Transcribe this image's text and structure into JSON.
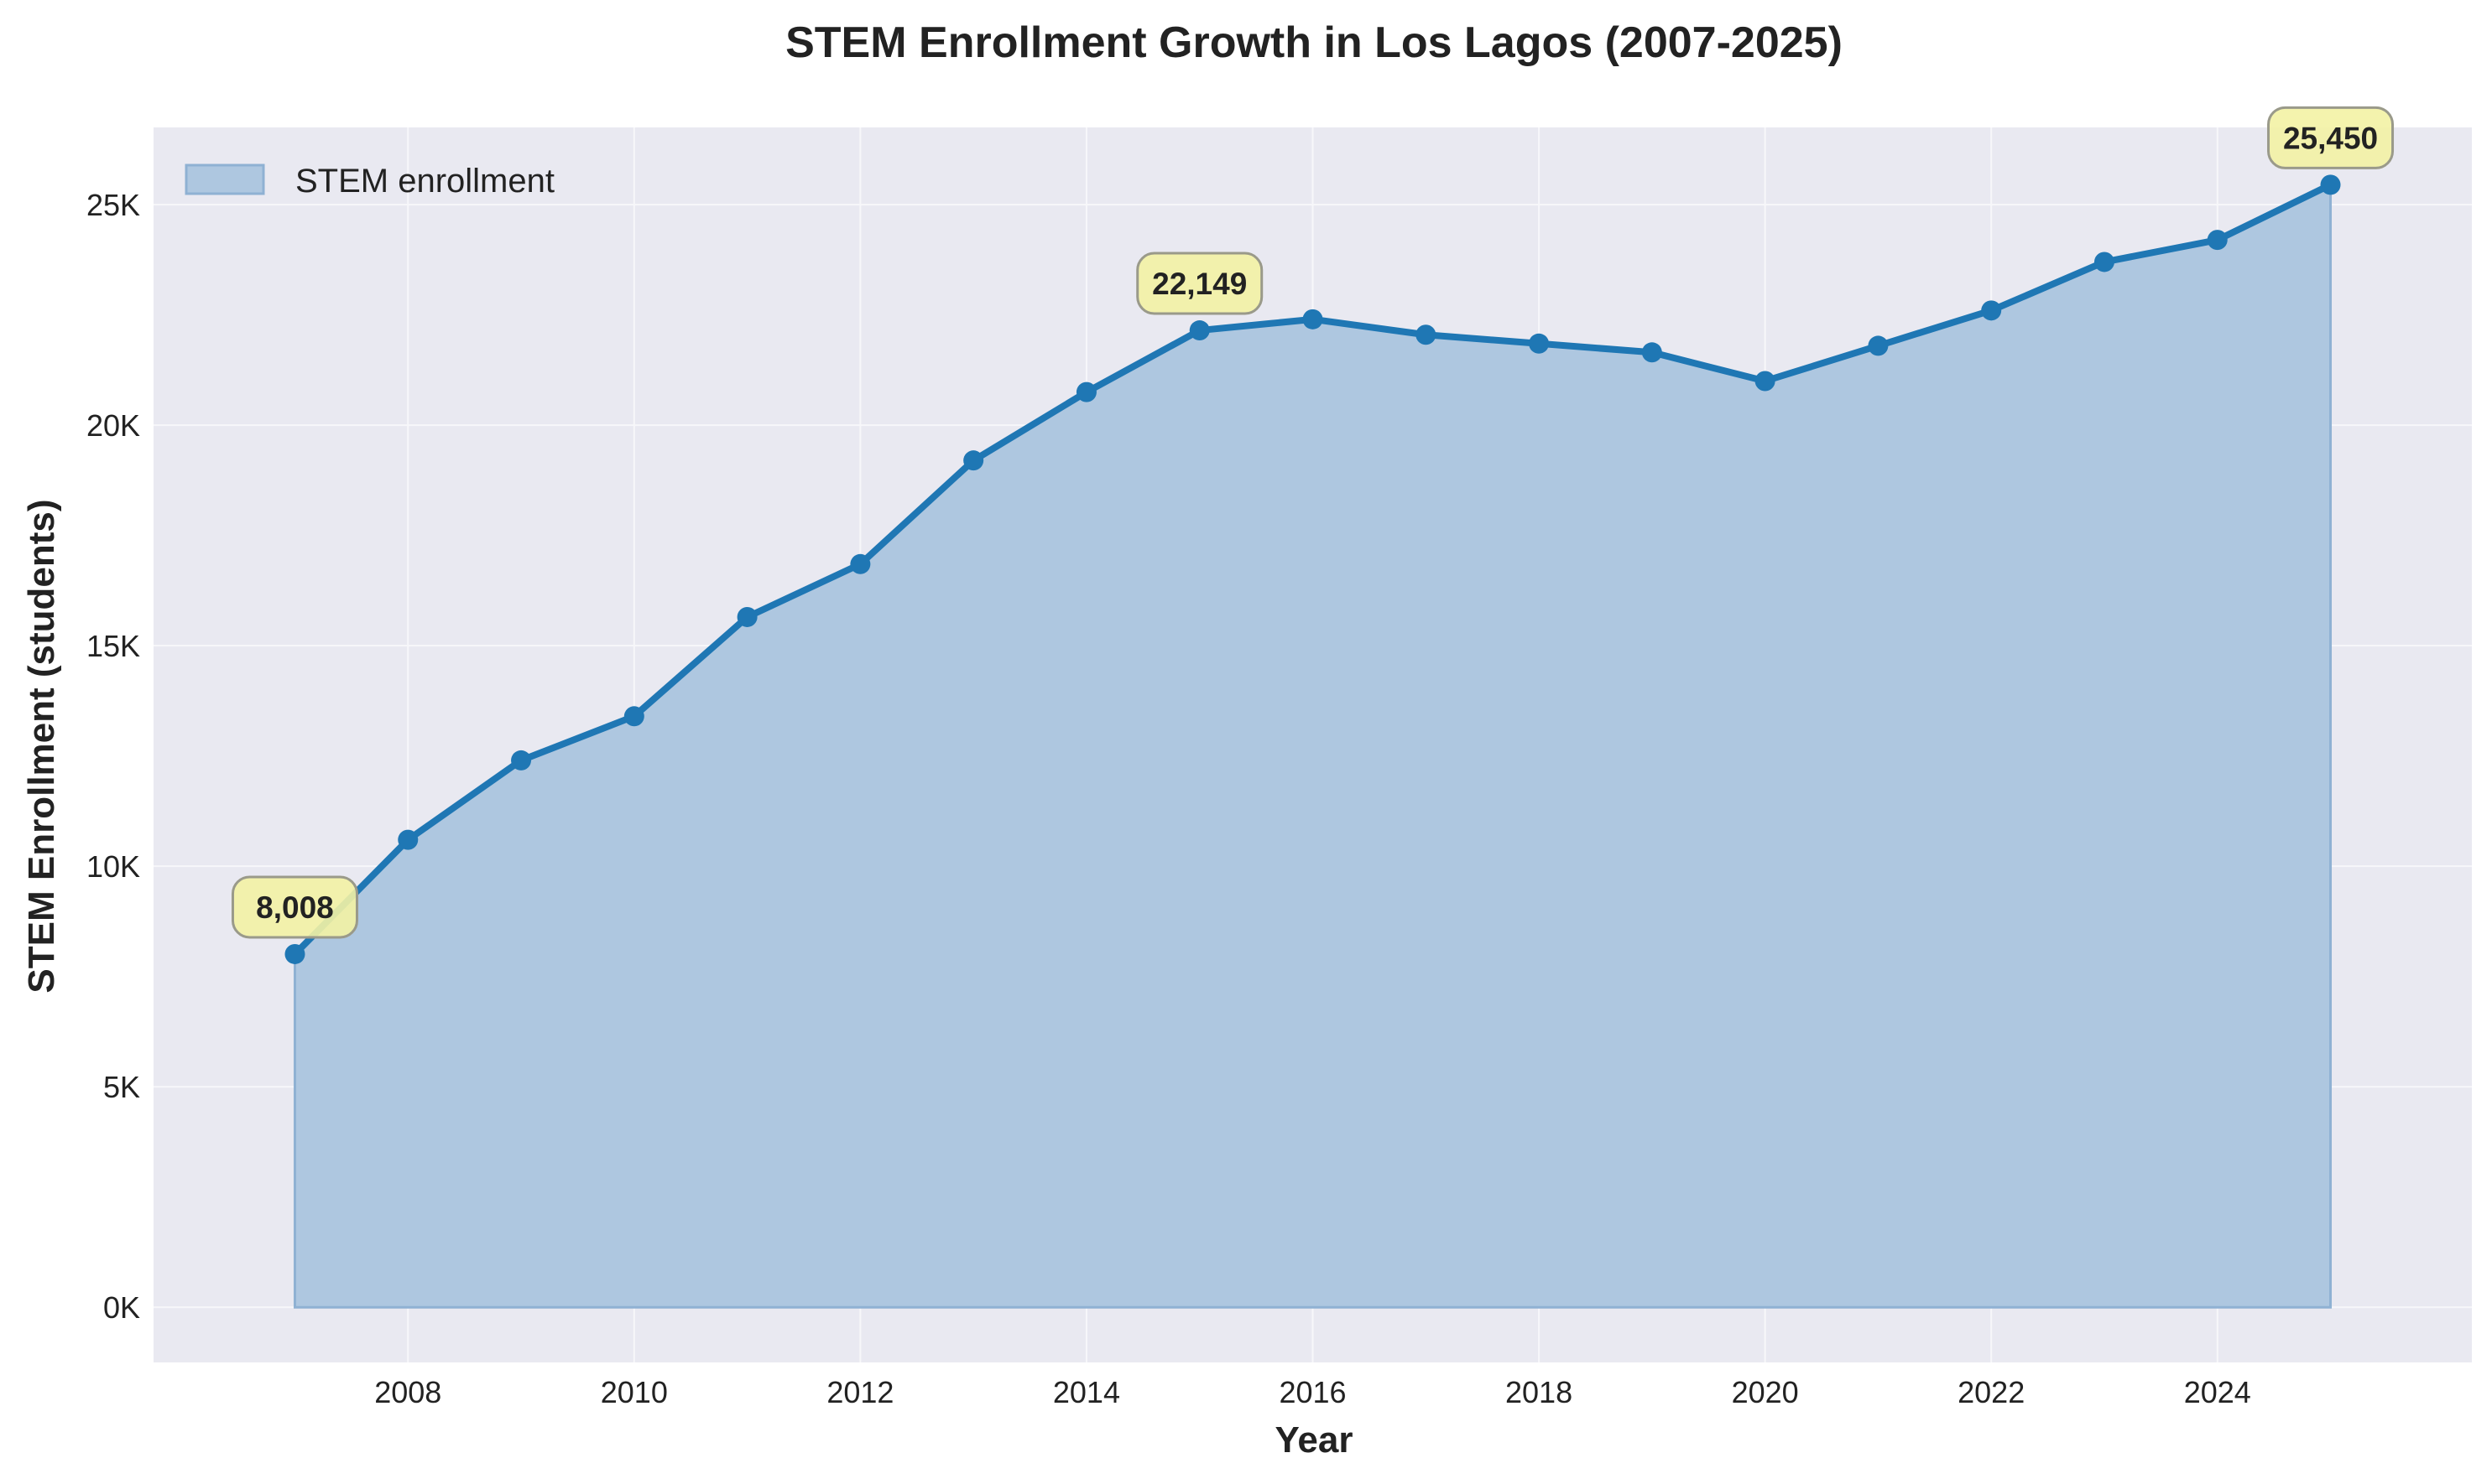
{
  "chart_data": {
    "type": "area",
    "title": "STEM Enrollment Growth in Los Lagos (2007-2025)",
    "xlabel": "Year",
    "ylabel": "STEM Enrollment (students)",
    "xlim": [
      2005.75,
      2026.25
    ],
    "ylim": [
      -1250,
      26750
    ],
    "x_ticks": [
      2008,
      2010,
      2012,
      2014,
      2016,
      2018,
      2020,
      2022,
      2024
    ],
    "y_ticks": [
      0,
      5000,
      10000,
      15000,
      20000,
      25000
    ],
    "y_tick_labels": [
      "0K",
      "5K",
      "10K",
      "15K",
      "20K",
      "25K"
    ],
    "grid": true,
    "legend_position": "top-left",
    "series": [
      {
        "name": "STEM enrollment",
        "x": [
          2007,
          2008,
          2009,
          2010,
          2011,
          2012,
          2013,
          2014,
          2015,
          2016,
          2017,
          2018,
          2019,
          2020,
          2021,
          2022,
          2023,
          2024,
          2025
        ],
        "values": [
          8008,
          10600,
          12400,
          13400,
          15650,
          16850,
          19200,
          20750,
          22149,
          22400,
          22050,
          21850,
          21650,
          21000,
          21800,
          22600,
          23700,
          24200,
          25450
        ]
      }
    ],
    "annotations": [
      {
        "year": 2007,
        "value": 8008,
        "text": "8,008"
      },
      {
        "year": 2015,
        "value": 22149,
        "text": "22,149"
      },
      {
        "year": 2025,
        "value": 25450,
        "text": "25,450"
      }
    ]
  },
  "colors": {
    "line": "#1f77b4",
    "fill": "#aec7e0",
    "fill_edge": "#8fb1d3",
    "plot_bg": "#e9e9f1",
    "grid": "#f7f7fa",
    "anno_bg": "#f3f2a4",
    "anno_edge": "#9a9a8a"
  }
}
